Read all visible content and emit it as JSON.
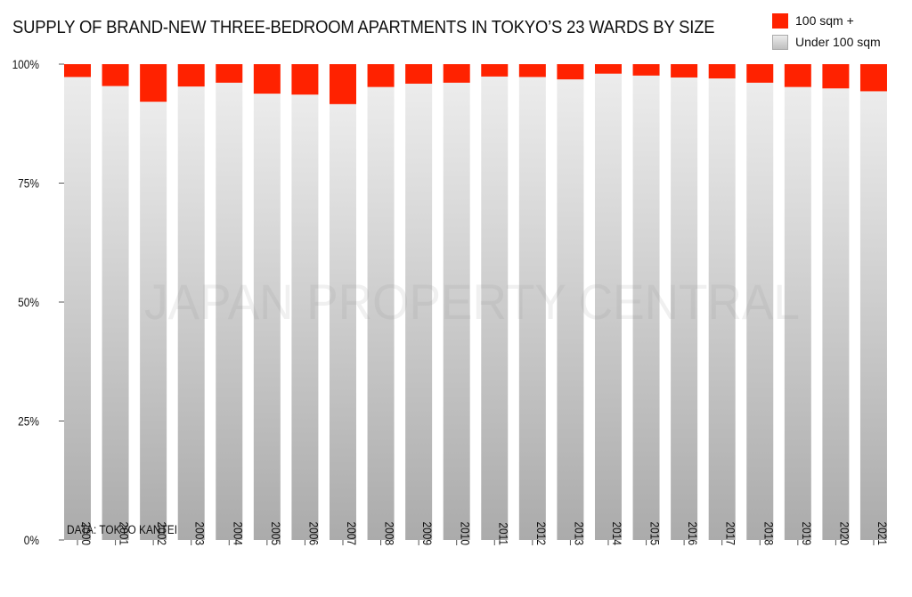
{
  "chart_data": {
    "type": "bar",
    "stacked": true,
    "title": "SUPPLY OF BRAND-NEW THREE-BEDROOM APARTMENTS IN TOKYO’S 23 WARDS BY SIZE",
    "categories": [
      "2000",
      "2001",
      "2002",
      "2003",
      "2004",
      "2005",
      "2006",
      "2007",
      "2008",
      "2009",
      "2010",
      "2011",
      "2012",
      "2013",
      "2014",
      "2015",
      "2016",
      "2017",
      "2018",
      "2019",
      "2020",
      "2021"
    ],
    "series": [
      {
        "name": "Under 100 sqm",
        "color": "#cccccc",
        "values": [
          97.3,
          95.4,
          92.1,
          95.3,
          96.1,
          93.8,
          93.6,
          91.6,
          95.2,
          95.9,
          96.1,
          97.4,
          97.3,
          96.8,
          98.0,
          97.6,
          97.2,
          97.0,
          96.1,
          95.2,
          94.9,
          94.3
        ]
      },
      {
        "name": "100 sqm +",
        "color": "#ff2200",
        "values": [
          2.7,
          4.6,
          7.9,
          4.7,
          3.9,
          6.2,
          6.4,
          8.4,
          4.8,
          4.1,
          3.9,
          2.6,
          2.7,
          3.2,
          2.0,
          2.4,
          2.8,
          3.0,
          3.9,
          4.8,
          5.1,
          5.7
        ]
      }
    ],
    "ylim": [
      0,
      100
    ],
    "yticks": [
      0,
      25,
      50,
      75,
      100
    ],
    "ytick_labels": [
      "0%",
      "25%",
      "50%",
      "75%",
      "100%"
    ],
    "legend": {
      "position": "top-right",
      "labels": [
        "100 sqm +",
        "Under 100 sqm"
      ]
    },
    "grid": false,
    "source": "DATA: TOKYO KANTEI",
    "watermark": "JAPAN PROPERTY CENTRAL"
  }
}
